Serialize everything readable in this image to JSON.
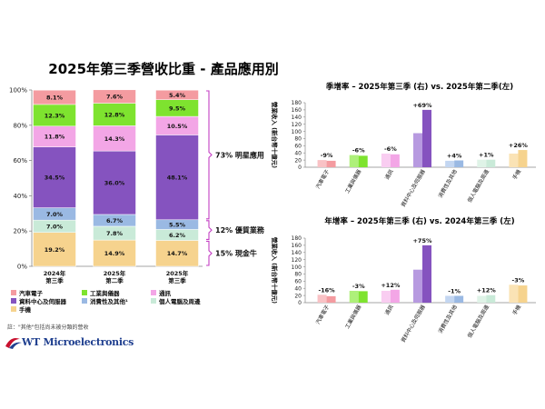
{
  "main_title": "2025年第三季營收比重 - 產品應用別",
  "left_chart": {
    "type": "bar",
    "stacked": true,
    "percent_axis": [
      "100%",
      "80%",
      "60%",
      "40%",
      "20%",
      "0%"
    ],
    "ylim": [
      0,
      100
    ],
    "categories": [
      [
        "2024年",
        "第三季"
      ],
      [
        "2025年",
        "第二季"
      ],
      [
        "2025年",
        "第三季"
      ]
    ],
    "series": [
      {
        "name": "手機",
        "color": "#f6d38e",
        "values": [
          19.2,
          14.9,
          14.7
        ],
        "labels": [
          "19.2%",
          "14.9%",
          "14.7%"
        ]
      },
      {
        "name": "個人電腦及周邊",
        "color": "#c9ead8",
        "values": [
          7.0,
          7.8,
          6.2
        ],
        "labels": [
          "7.0%",
          "7.8%",
          "6.2%"
        ]
      },
      {
        "name": "消費性及其他",
        "color": "#9ab9e3",
        "values": [
          7.0,
          6.7,
          5.5
        ],
        "labels": [
          "7.0%",
          "6.7%",
          "5.5%"
        ]
      },
      {
        "name": "資料中心及伺服器",
        "color": "#8553bf",
        "values": [
          34.5,
          36.0,
          48.1
        ],
        "labels": [
          "34.5%",
          "36.0%",
          "48.1%"
        ]
      },
      {
        "name": "通訊",
        "color": "#f3a6e6",
        "values": [
          11.8,
          14.3,
          10.5
        ],
        "labels": [
          "11.8%",
          "14.3%",
          "10.5%"
        ]
      },
      {
        "name": "工業與儀器",
        "color": "#7ee32f",
        "values": [
          12.3,
          12.8,
          9.5
        ],
        "labels": [
          "12.3%",
          "12.8%",
          "9.5%"
        ]
      },
      {
        "name": "汽車電子",
        "color": "#f49ba0",
        "values": [
          8.1,
          7.6,
          5.4
        ],
        "labels": [
          "8.1%",
          "7.6%",
          "5.4%"
        ]
      }
    ],
    "bracket_labels": [
      "73% 明星應用",
      "12% 優質業務",
      "15% 現金牛"
    ],
    "bracket_color": "#c43fc4"
  },
  "legend": [
    {
      "name": "汽車電子",
      "color": "#f49ba0"
    },
    {
      "name": "工業與儀器",
      "color": "#7ee32f"
    },
    {
      "name": "通訊",
      "color": "#f3a6e6"
    },
    {
      "name": "資料中心及伺服器",
      "color": "#8553bf"
    },
    {
      "name": "消費性及其他¹",
      "color": "#9ab9e3"
    },
    {
      "name": "個人電腦及周邊",
      "color": "#c9ead8"
    },
    {
      "name": "手機",
      "color": "#f6d38e"
    }
  ],
  "footnote": "註：\"其他\"包括尚未被分類的營收",
  "logo_text": "WT Microelectronics",
  "qoq_chart": {
    "type": "bar",
    "title": "季增率 – 2025年第三季 (右) vs. 2025年第二季(左)",
    "ylabel": "營業收入 (新台幣十億元)",
    "yticks": [
      "180",
      "160",
      "140",
      "120",
      "100",
      "80",
      "60",
      "40",
      "20",
      "0"
    ],
    "ylim": [
      0,
      180
    ],
    "categories": [
      "汽車電子",
      "工業與儀器",
      "通訊",
      "資料中心及伺服器",
      "消費性及其他",
      "個人電腦及周邊",
      "手機"
    ],
    "series": [
      {
        "name": "2025年第二季",
        "values": [
          20,
          34,
          38,
          95,
          18,
          21,
          38
        ]
      },
      {
        "name": "2025年第三季",
        "values": [
          18,
          32,
          36,
          160,
          19,
          21,
          48
        ]
      }
    ],
    "change_labels": [
      "-9%",
      "-6%",
      "-6%",
      "+69%",
      "+4%",
      "+1%",
      "+26%"
    ]
  },
  "yoy_chart": {
    "type": "bar",
    "title": "年增率 – 2025年第三季 (右) vs. 2024年第三季 (左)",
    "ylabel": "營業收入 (新台幣十億元)",
    "yticks": [
      "180",
      "160",
      "140",
      "120",
      "100",
      "80",
      "60",
      "40",
      "20",
      "0"
    ],
    "ylim": [
      0,
      180
    ],
    "categories": [
      "汽車電子",
      "工業與儀器",
      "通訊",
      "資料中心及伺服器",
      "消費性及其他",
      "個人電腦及周邊",
      "手機"
    ],
    "series": [
      {
        "name": "2024年第三季",
        "values": [
          22,
          33,
          33,
          92,
          19,
          19,
          50
        ]
      },
      {
        "name": "2025年第三季",
        "values": [
          18,
          32,
          36,
          160,
          19,
          21,
          48
        ]
      }
    ],
    "change_labels": [
      "-16%",
      "-3%",
      "+12%",
      "+75%",
      "-1%",
      "+12%",
      "-3%"
    ]
  },
  "chart_data": [
    {
      "type": "bar",
      "title": "2025年第三季營收比重 - 產品應用別",
      "stacked": true,
      "categories": [
        "2024年第三季",
        "2025年第二季",
        "2025年第三季"
      ],
      "ylim": [
        0,
        100
      ],
      "series": [
        {
          "name": "手機",
          "values": [
            19.2,
            14.9,
            14.7
          ]
        },
        {
          "name": "個人電腦及周邊",
          "values": [
            7.0,
            7.8,
            6.2
          ]
        },
        {
          "name": "消費性及其他",
          "values": [
            7.0,
            6.7,
            5.5
          ]
        },
        {
          "name": "資料中心及伺服器",
          "values": [
            34.5,
            36.0,
            48.1
          ]
        },
        {
          "name": "通訊",
          "values": [
            11.8,
            14.3,
            10.5
          ]
        },
        {
          "name": "工業與儀器",
          "values": [
            12.3,
            12.8,
            9.5
          ]
        },
        {
          "name": "汽車電子",
          "values": [
            8.1,
            7.6,
            5.4
          ]
        }
      ]
    },
    {
      "type": "bar",
      "title": "季增率 – 2025年第三季 (右) vs. 2025年第二季(左)",
      "ylabel": "營業收入 (新台幣十億元)",
      "ylim": [
        0,
        180
      ],
      "categories": [
        "汽車電子",
        "工業與儀器",
        "通訊",
        "資料中心及伺服器",
        "消費性及其他",
        "個人電腦及周邊",
        "手機"
      ],
      "series": [
        {
          "name": "2025年第二季",
          "values": [
            20,
            34,
            38,
            95,
            18,
            21,
            38
          ]
        },
        {
          "name": "2025年第三季",
          "values": [
            18,
            32,
            36,
            160,
            19,
            21,
            48
          ]
        }
      ]
    },
    {
      "type": "bar",
      "title": "年增率 – 2025年第三季 (右) vs. 2024年第三季 (左)",
      "ylabel": "營業收入 (新台幣十億元)",
      "ylim": [
        0,
        180
      ],
      "categories": [
        "汽車電子",
        "工業與儀器",
        "通訊",
        "資料中心及伺服器",
        "消費性及其他",
        "個人電腦及周邊",
        "手機"
      ],
      "series": [
        {
          "name": "2024年第三季",
          "values": [
            22,
            33,
            33,
            92,
            19,
            19,
            50
          ]
        },
        {
          "name": "2025年第三季",
          "values": [
            18,
            32,
            36,
            160,
            19,
            21,
            48
          ]
        }
      ]
    }
  ]
}
